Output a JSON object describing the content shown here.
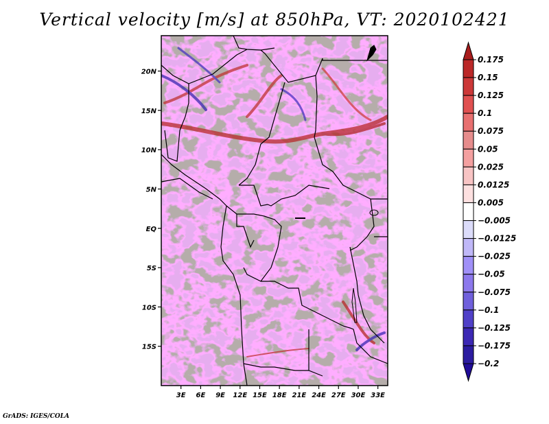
{
  "title": "Vertical velocity [m/s] at 850hPa, VT: 2020102421",
  "footer": "GrADS: IGES/COLA",
  "map": {
    "variable": "Vertical velocity",
    "units": "m/s",
    "level": "850hPa",
    "valid_time": "2020102421",
    "lat_ticks": [
      "20N",
      "15N",
      "10N",
      "5N",
      "EQ",
      "5S",
      "10S",
      "15S"
    ],
    "lat_values": [
      20,
      15,
      10,
      5,
      0,
      -5,
      -10,
      -15
    ],
    "lon_ticks": [
      "3E",
      "6E",
      "9E",
      "12E",
      "15E",
      "18E",
      "21E",
      "24E",
      "27E",
      "30E",
      "33E"
    ],
    "lon_values": [
      3,
      6,
      9,
      12,
      15,
      18,
      21,
      24,
      27,
      30,
      33
    ],
    "lat_range": [
      -20,
      24.5
    ],
    "lon_range": [
      0,
      34.5
    ]
  },
  "colorbar": {
    "labels": [
      "0.175",
      "0.15",
      "0.125",
      "0.1",
      "0.075",
      "0.05",
      "0.025",
      "0.0125",
      "0.005",
      "-0.005",
      "-0.0125",
      "-0.025",
      "-0.05",
      "-0.075",
      "-0.1",
      "-0.125",
      "-0.175",
      "-0.2"
    ],
    "colors": [
      "#a81c1c",
      "#bb2828",
      "#cc3838",
      "#e05050",
      "#e87070",
      "#e68c8c",
      "#f4a0a0",
      "#f8c4c4",
      "#fde0e0",
      "#ffffff",
      "#dcdcfa",
      "#c0b8f8",
      "#a090f8",
      "#8c78ec",
      "#7060dc",
      "#5040c8",
      "#3c28b4",
      "#2c1ca0",
      "#200c98"
    ]
  }
}
